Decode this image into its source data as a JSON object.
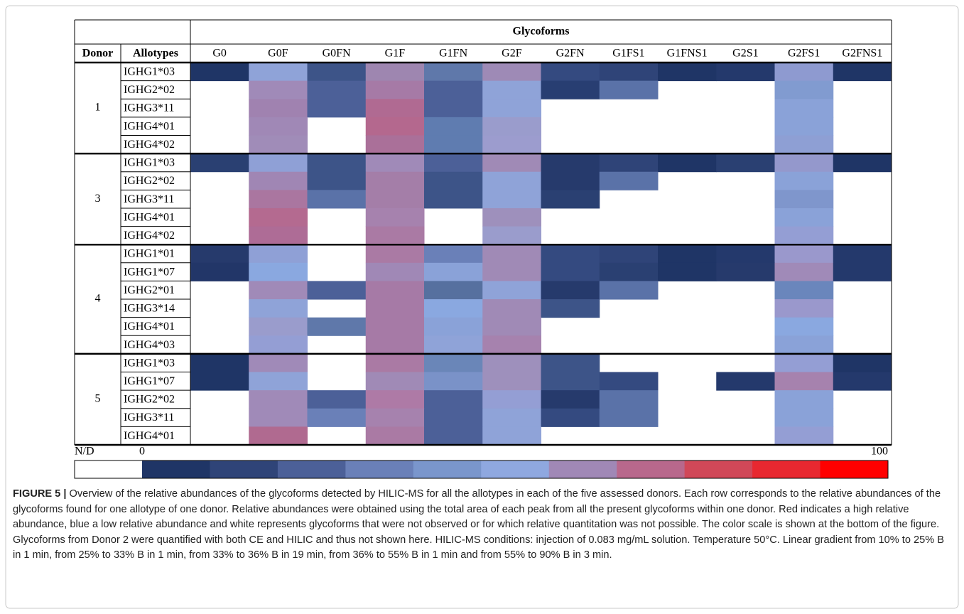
{
  "table": {
    "group_header": "Glycoforms",
    "columns": [
      "Donor",
      "Allotypes",
      "G0",
      "G0F",
      "G0FN",
      "G1F",
      "G1FN",
      "G2F",
      "G2FN",
      "G1FS1",
      "G1FNS1",
      "G2S1",
      "G2FS1",
      "G2FNS1"
    ],
    "donors": [
      {
        "donor": "1",
        "rows": [
          {
            "allotype": "IGHG1*03",
            "cells": [
              "#1f3566",
              "#8fa3d8",
              "#3d5488",
              "#9e86b0",
              "#5f78aa",
              "#9e8ab6",
              "#344a80",
              "#2f4478",
              "#1f3566",
              "#24396c",
              "#8e9ad0",
              "#1f3566"
            ]
          },
          {
            "allotype": "IGHG2*02",
            "cells": [
              null,
              "#a08ab8",
              "#4c6098",
              "#a67aa6",
              "#4c6098",
              "#8fa3d8",
              "#283e72",
              "#5a72a8",
              null,
              null,
              "#819bd0",
              null
            ]
          },
          {
            "allotype": "IGHG3*11",
            "cells": [
              null,
              "#a082b0",
              "#4c6098",
              "#b06a92",
              "#4c6098",
              "#8fa3d8",
              null,
              null,
              null,
              null,
              "#8aa2d8",
              null
            ]
          },
          {
            "allotype": "IGHG4*01",
            "cells": [
              null,
              "#a088b6",
              null,
              "#b4688e",
              "#5f7cb0",
              "#9a9ccc",
              null,
              null,
              null,
              null,
              "#8aa2d8",
              null
            ]
          },
          {
            "allotype": "IGHG4*02",
            "cells": [
              null,
              "#a08cb8",
              null,
              "#aa7099",
              "#5f7cb0",
              "#9c9cce",
              null,
              null,
              null,
              null,
              "#8e9fd4",
              null
            ]
          }
        ]
      },
      {
        "donor": "3",
        "rows": [
          {
            "allotype": "IGHG1*03",
            "cells": [
              "#2a4072",
              "#8fa0d6",
              "#3d5488",
              "#a08ab8",
              "#4c6098",
              "#a08ab6",
              "#263a6c",
              "#2f4478",
              "#1f3566",
              "#2a4072",
              "#9498cc",
              "#1f3566"
            ]
          },
          {
            "allotype": "IGHG2*02",
            "cells": [
              null,
              "#a086b4",
              "#3d5488",
              "#a47ea8",
              "#3d5488",
              "#8fa3d8",
              "#263a6c",
              "#5a72a8",
              null,
              null,
              "#8aa2d8",
              null
            ]
          },
          {
            "allotype": "IGHG3*11",
            "cells": [
              null,
              "#aa76a0",
              "#5a72a8",
              "#a47ea8",
              "#3d5488",
              "#8fa3d8",
              "#2a4072",
              null,
              null,
              null,
              "#7f96cc",
              null
            ]
          },
          {
            "allotype": "IGHG4*01",
            "cells": [
              null,
              "#b46a90",
              null,
              "#a682ae",
              null,
              "#9e90bc",
              null,
              null,
              null,
              null,
              "#8aa2d8",
              null
            ]
          },
          {
            "allotype": "IGHG4*02",
            "cells": [
              null,
              "#ae6c96",
              null,
              "#aa7aa4",
              null,
              "#9a9ccc",
              null,
              null,
              null,
              null,
              "#949ed4",
              null
            ]
          }
        ]
      },
      {
        "donor": "4",
        "rows": [
          {
            "allotype": "IGHG1*01",
            "cells": [
              "#263a6c",
              "#8fa0d6",
              null,
              "#aa7aa4",
              "#6a80b8",
              "#a08ab6",
              "#344a80",
              "#2f4478",
              "#1f3566",
              "#24396c",
              "#9a98cc",
              "#24396c"
            ]
          },
          {
            "allotype": "IGHG1*07",
            "cells": [
              "#223668",
              "#8aa8e0",
              null,
              "#a088b6",
              "#8aa2d8",
              "#a08ab6",
              "#344a80",
              "#2a4072",
              "#1f3566",
              "#263a6c",
              "#a08ab8",
              "#24396c"
            ]
          },
          {
            "allotype": "IGHG2*01",
            "cells": [
              null,
              "#a08ab8",
              "#4c6098",
              "#a67aa6",
              "#56709f",
              "#8fa3d8",
              "#263a6c",
              "#5a72a8",
              null,
              null,
              "#6a86bc",
              null
            ]
          },
          {
            "allotype": "IGHG3*14",
            "cells": [
              null,
              "#8fa3d8",
              null,
              "#a67aa6",
              "#8aa8e0",
              "#a08ab6",
              "#3d5488",
              null,
              null,
              null,
              "#9a98cc",
              null
            ]
          },
          {
            "allotype": "IGHG4*01",
            "cells": [
              null,
              "#9a9ccc",
              "#5f78aa",
              "#a67aa6",
              "#8aa2d8",
              "#a08ab6",
              null,
              null,
              null,
              null,
              "#8aa8e0",
              null
            ]
          },
          {
            "allotype": "IGHG4*03",
            "cells": [
              null,
              "#949ed4",
              null,
              "#a67aa6",
              "#8fa3d8",
              "#a682ae",
              null,
              null,
              null,
              null,
              "#8aa2d8",
              null
            ]
          }
        ]
      },
      {
        "donor": "5",
        "rows": [
          {
            "allotype": "IGHG1*03",
            "cells": [
              "#1f3566",
              "#a08ab8",
              null,
              "#aa7aa4",
              "#6a86b8",
              "#9e90bc",
              "#3d5488",
              null,
              null,
              null,
              "#949ed4",
              "#1f3566"
            ]
          },
          {
            "allotype": "IGHG1*07",
            "cells": [
              "#1f3566",
              "#8fa3d8",
              null,
              "#a08ab6",
              "#7a92c8",
              "#9e90bc",
              "#3d5488",
              "#344a80",
              null,
              "#24396c",
              "#a682ae",
              "#24396c"
            ]
          },
          {
            "allotype": "IGHG2*02",
            "cells": [
              null,
              "#a08ab8",
              "#4c6098",
              "#ae7aa6",
              "#4c6098",
              "#949ed4",
              "#263a6c",
              "#5a72a8",
              null,
              null,
              "#8aa2d8",
              null
            ]
          },
          {
            "allotype": "IGHG3*11",
            "cells": [
              null,
              "#a08ab8",
              "#6a80b8",
              "#a682ae",
              "#4c6098",
              "#8fa3d8",
              "#344a80",
              "#5a72a8",
              null,
              null,
              "#8aa2d8",
              null
            ]
          },
          {
            "allotype": "IGHG4*01",
            "cells": [
              null,
              "#b06a90",
              null,
              "#aa7aa4",
              "#4c6098",
              "#8fa3d8",
              null,
              null,
              null,
              null,
              "#949ed4",
              null
            ]
          }
        ]
      }
    ]
  },
  "scale": {
    "nd_label": "N/D",
    "min_label": "0",
    "max_label": "100",
    "colors": [
      "#ffffff",
      "#1f3566",
      "#2f4478",
      "#4c6098",
      "#6a80b8",
      "#7a96cc",
      "#8fa8e0",
      "#a088b6",
      "#b8688c",
      "#d04858",
      "#e82830",
      "#ff0000"
    ]
  },
  "caption": {
    "label": "FIGURE 5 |",
    "text": "Overview of the relative abundances of the glycoforms detected by HILIC-MS for all the allotypes in each of the five assessed donors. Each row corresponds to the relative abundances of the glycoforms found for one allotype of one donor. Relative abundances were obtained using the total area of each peak from all the present glycoforms within one donor. Red indicates a high relative abundance, blue a low relative abundance and white represents glycoforms that were not observed or for which relative quantitation was not possible. The color scale is shown at the bottom of the figure. Glycoforms from Donor 2 were quantified with both CE and HILIC and thus not shown here. HILIC-MS conditions: injection of 0.083 mg/mL solution. Temperature 50°C. Linear gradient from 10% to 25% B in 1 min, from 25% to 33% B in 1 min, from 33% to 36% B in 19 min, from 36% to 55% B in 1 min and from 55% to 90% B in 3 min."
  }
}
